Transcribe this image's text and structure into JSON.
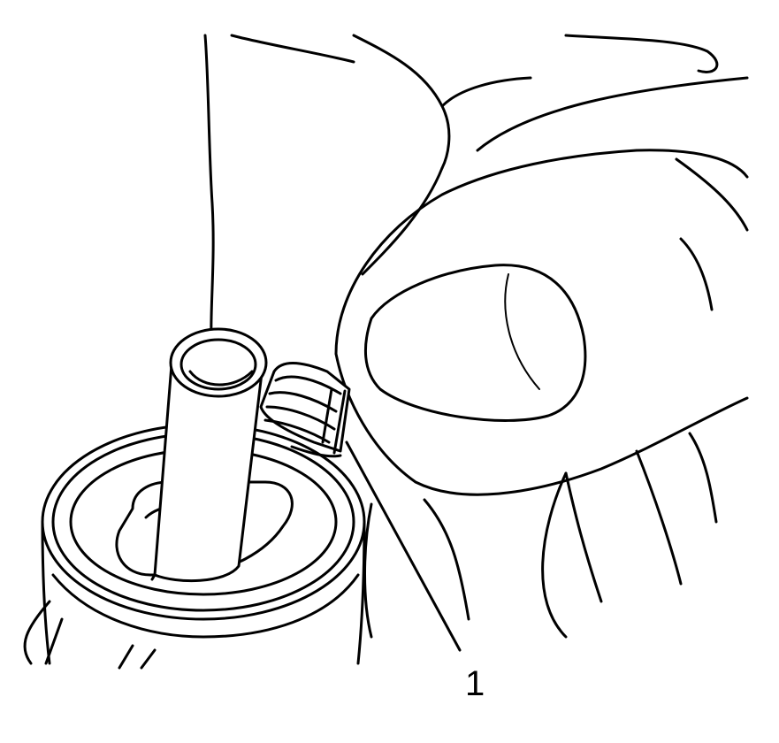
{
  "callouts": [
    {
      "number": "1"
    }
  ],
  "icons": [
    "hand-icon",
    "tube-icon",
    "fitting-housing-icon",
    "retainer-clip-icon"
  ]
}
